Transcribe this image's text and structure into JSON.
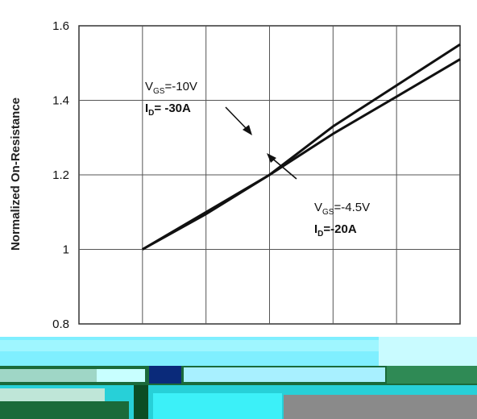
{
  "chart_data": {
    "type": "line",
    "ylabel": "Normalized On-Resistance",
    "xlabel": "",
    "ylim": [
      0.8,
      1.6
    ],
    "xlim": [
      0,
      150
    ],
    "y_ticks": [
      "0.8",
      "1",
      "1.2",
      "1.4",
      "1.6"
    ],
    "grid": true,
    "series": [
      {
        "x": [
          25,
          50,
          75,
          100,
          125,
          150
        ],
        "y": [
          1.0,
          1.1,
          1.2,
          1.33,
          1.44,
          1.55
        ]
      },
      {
        "x": [
          25,
          50,
          75,
          100,
          125,
          150
        ],
        "y": [
          1.0,
          1.095,
          1.2,
          1.31,
          1.41,
          1.51
        ]
      }
    ],
    "annotations": [
      {
        "vgs": "=-10V",
        "id": "= -30A",
        "arrow_to": [
          80,
          1.3
        ]
      },
      {
        "vgs": "=-4.5V",
        "id": "=-20A",
        "arrow_to": [
          85,
          1.26
        ]
      }
    ]
  }
}
